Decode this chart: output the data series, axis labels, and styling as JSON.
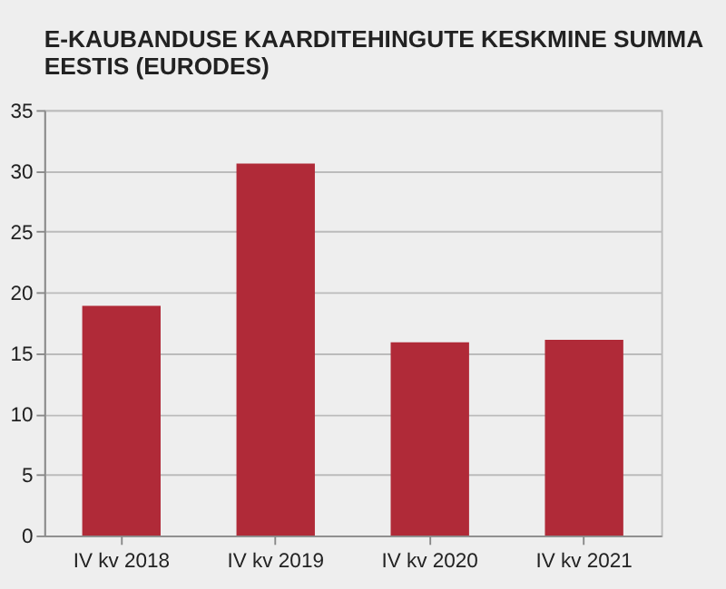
{
  "chart_data": {
    "type": "bar",
    "title": [
      "E-KAUBANDUSE KAARDITEHINGUTE KESKMINE SUMMA",
      "EESTIS (EURODES)"
    ],
    "categories": [
      "IV kv 2018",
      "IV kv 2019",
      "IV kv 2020",
      "IV kv 2021"
    ],
    "values": [
      18.9,
      30.6,
      15.9,
      16.1
    ],
    "color": "#b02a38",
    "ylim": [
      0,
      35
    ],
    "yticks": [
      0,
      5,
      10,
      15,
      20,
      25,
      30,
      35
    ],
    "grid": "y"
  }
}
